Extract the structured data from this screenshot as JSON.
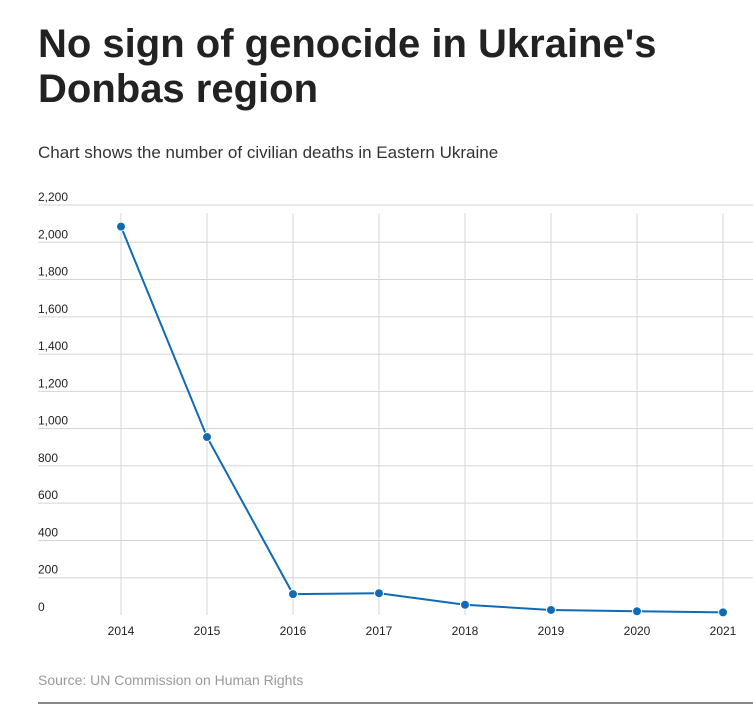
{
  "title": "No sign of genocide in Ukraine's Donbas region",
  "subtitle": "Chart shows the number of civilian deaths in Eastern Ukraine",
  "source": "Source: UN Commission on Human Rights",
  "colors": {
    "line": "#0f6bb5",
    "grid": "#d4d4d4",
    "text": "#222222",
    "source": "#999999"
  },
  "chart_data": {
    "type": "line",
    "title": "No sign of genocide in Ukraine's Donbas region",
    "subtitle": "Chart shows the number of civilian deaths in Eastern Ukraine",
    "xlabel": "",
    "ylabel": "",
    "categories": [
      "2014",
      "2015",
      "2016",
      "2017",
      "2018",
      "2019",
      "2020",
      "2021"
    ],
    "series": [
      {
        "values": [
          2084,
          955,
          112,
          117,
          55,
          27,
          20,
          14
        ]
      }
    ],
    "ylim": [
      0,
      2200
    ],
    "yticks": [
      0,
      200,
      400,
      600,
      800,
      1000,
      1200,
      1400,
      1600,
      1800,
      2000,
      2200
    ],
    "ytick_labels": [
      "0",
      "200",
      "400",
      "600",
      "800",
      "1,000",
      "1,200",
      "1,400",
      "1,600",
      "1,800",
      "2,000",
      "2,200"
    ],
    "grid": true,
    "legend": "none"
  }
}
